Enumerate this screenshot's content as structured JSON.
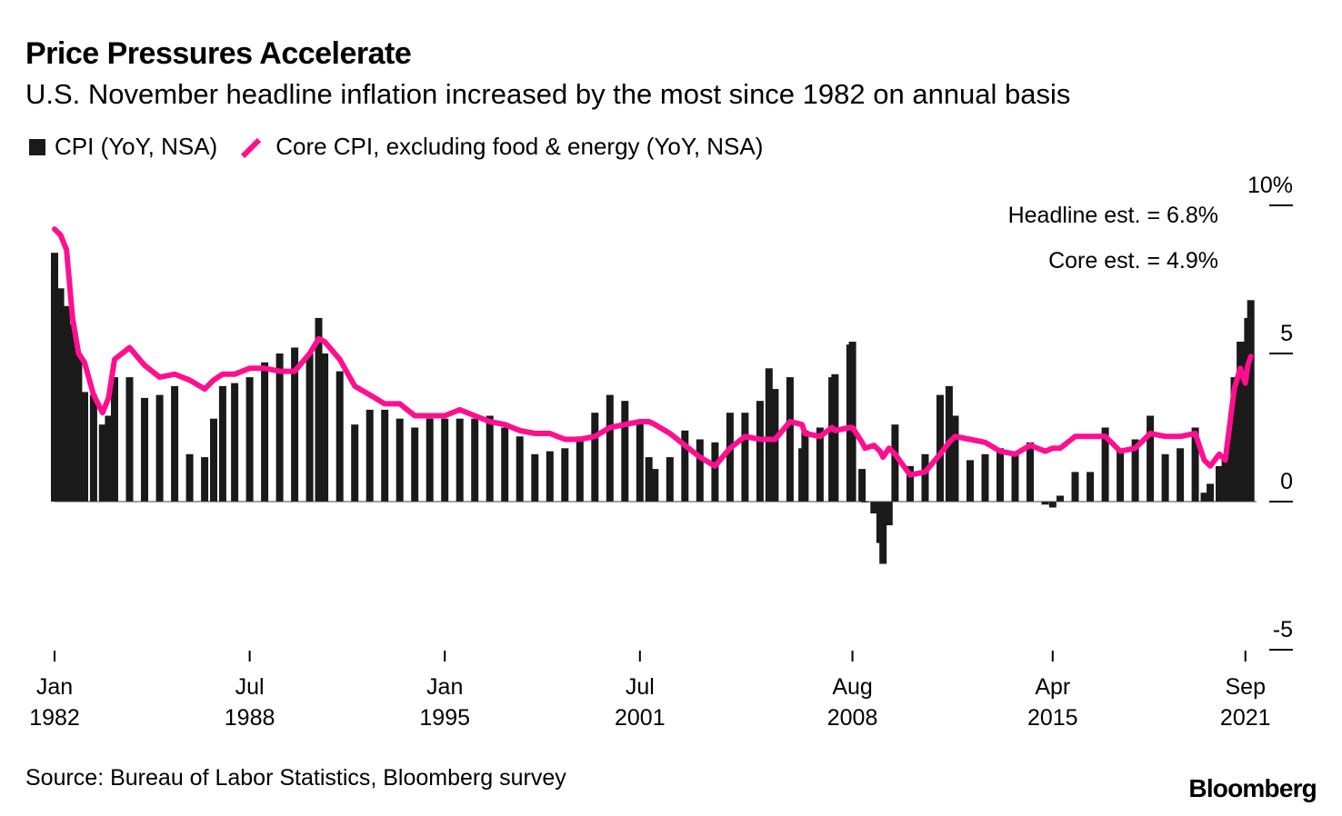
{
  "title": "Price Pressures Accelerate",
  "subtitle": "U.S. November headline inflation increased by the most since 1982 on annual basis",
  "legend": {
    "cpi": "CPI (YoY, NSA)",
    "core": "Core CPI, excluding food & energy (YoY, NSA)"
  },
  "source": "Source: Bureau of Labor Statistics, Bloomberg survey",
  "brand": "Bloomberg",
  "colors": {
    "bars": "#1a1a1a",
    "core": "#ff0f8f",
    "axis": "#000000"
  },
  "chart_data": {
    "type": "bar+line",
    "title": "Price Pressures Accelerate",
    "ylim": [
      -5,
      10
    ],
    "y_ticks": [
      {
        "value": 10,
        "label": "10%"
      },
      {
        "value": 5,
        "label": "5"
      },
      {
        "value": 0,
        "label": "0"
      },
      {
        "value": -5,
        "label": "-5"
      }
    ],
    "x_range": [
      1982.0,
      2021.92
    ],
    "x_ticks": [
      {
        "value": 1982.0,
        "month": "Jan",
        "year": "1982"
      },
      {
        "value": 1988.5,
        "month": "Jul",
        "year": "1988"
      },
      {
        "value": 1995.0,
        "month": "Jan",
        "year": "1995"
      },
      {
        "value": 2001.5,
        "month": "Jul",
        "year": "2001"
      },
      {
        "value": 2008.58,
        "month": "Aug",
        "year": "2008"
      },
      {
        "value": 2015.25,
        "month": "Apr",
        "year": "2015"
      },
      {
        "value": 2021.67,
        "month": "Sep",
        "year": "2021"
      }
    ],
    "annotations": [
      {
        "text": "Headline est. = 6.8%"
      },
      {
        "text": "Core est. = 4.9%"
      }
    ],
    "series": [
      {
        "name": "CPI (YoY, NSA)",
        "kind": "bar",
        "points": [
          [
            1982.0,
            8.4
          ],
          [
            1982.2,
            7.2
          ],
          [
            1982.4,
            6.6
          ],
          [
            1982.6,
            6.0
          ],
          [
            1982.8,
            5.0
          ],
          [
            1983.0,
            3.7
          ],
          [
            1983.3,
            3.6
          ],
          [
            1983.6,
            2.6
          ],
          [
            1983.8,
            2.9
          ],
          [
            1984.0,
            4.2
          ],
          [
            1984.5,
            4.2
          ],
          [
            1985.0,
            3.5
          ],
          [
            1985.5,
            3.6
          ],
          [
            1986.0,
            3.9
          ],
          [
            1986.5,
            1.6
          ],
          [
            1987.0,
            1.5
          ],
          [
            1987.3,
            2.8
          ],
          [
            1987.6,
            3.9
          ],
          [
            1988.0,
            4.0
          ],
          [
            1988.5,
            4.2
          ],
          [
            1989.0,
            4.7
          ],
          [
            1989.5,
            5.0
          ],
          [
            1990.0,
            5.2
          ],
          [
            1990.5,
            5.0
          ],
          [
            1990.8,
            6.2
          ],
          [
            1991.0,
            5.0
          ],
          [
            1991.5,
            4.4
          ],
          [
            1992.0,
            2.6
          ],
          [
            1992.5,
            3.1
          ],
          [
            1993.0,
            3.1
          ],
          [
            1993.5,
            2.8
          ],
          [
            1994.0,
            2.5
          ],
          [
            1994.5,
            2.8
          ],
          [
            1995.0,
            2.8
          ],
          [
            1995.5,
            2.8
          ],
          [
            1996.0,
            2.8
          ],
          [
            1996.5,
            2.9
          ],
          [
            1997.0,
            2.5
          ],
          [
            1997.5,
            2.2
          ],
          [
            1998.0,
            1.6
          ],
          [
            1998.5,
            1.7
          ],
          [
            1999.0,
            1.8
          ],
          [
            1999.5,
            2.2
          ],
          [
            2000.0,
            3.0
          ],
          [
            2000.5,
            3.6
          ],
          [
            2001.0,
            3.4
          ],
          [
            2001.5,
            2.7
          ],
          [
            2001.8,
            1.5
          ],
          [
            2002.0,
            1.1
          ],
          [
            2002.5,
            1.5
          ],
          [
            2003.0,
            2.4
          ],
          [
            2003.5,
            2.1
          ],
          [
            2004.0,
            2.0
          ],
          [
            2004.5,
            3.0
          ],
          [
            2005.0,
            3.0
          ],
          [
            2005.5,
            3.4
          ],
          [
            2005.8,
            4.5
          ],
          [
            2006.0,
            3.8
          ],
          [
            2006.5,
            4.2
          ],
          [
            2006.9,
            1.8
          ],
          [
            2007.0,
            2.4
          ],
          [
            2007.5,
            2.5
          ],
          [
            2007.9,
            4.2
          ],
          [
            2008.0,
            4.3
          ],
          [
            2008.5,
            5.3
          ],
          [
            2008.58,
            5.4
          ],
          [
            2008.9,
            1.1
          ],
          [
            2009.0,
            0.0
          ],
          [
            2009.3,
            -0.4
          ],
          [
            2009.5,
            -1.4
          ],
          [
            2009.6,
            -2.1
          ],
          [
            2009.8,
            -0.8
          ],
          [
            2010.0,
            2.6
          ],
          [
            2010.5,
            1.2
          ],
          [
            2011.0,
            1.6
          ],
          [
            2011.5,
            3.6
          ],
          [
            2011.8,
            3.9
          ],
          [
            2012.0,
            2.9
          ],
          [
            2012.5,
            1.4
          ],
          [
            2013.0,
            1.6
          ],
          [
            2013.5,
            1.8
          ],
          [
            2014.0,
            1.6
          ],
          [
            2014.5,
            2.0
          ],
          [
            2015.0,
            -0.1
          ],
          [
            2015.25,
            -0.2
          ],
          [
            2015.5,
            0.2
          ],
          [
            2016.0,
            1.0
          ],
          [
            2016.5,
            1.0
          ],
          [
            2017.0,
            2.5
          ],
          [
            2017.5,
            1.7
          ],
          [
            2018.0,
            2.1
          ],
          [
            2018.5,
            2.9
          ],
          [
            2019.0,
            1.6
          ],
          [
            2019.5,
            1.8
          ],
          [
            2020.0,
            2.5
          ],
          [
            2020.3,
            0.3
          ],
          [
            2020.5,
            0.6
          ],
          [
            2020.8,
            1.2
          ],
          [
            2021.0,
            1.4
          ],
          [
            2021.2,
            2.6
          ],
          [
            2021.3,
            4.2
          ],
          [
            2021.5,
            5.4
          ],
          [
            2021.67,
            5.4
          ],
          [
            2021.75,
            6.2
          ],
          [
            2021.85,
            6.8
          ]
        ]
      },
      {
        "name": "Core CPI, excluding food & energy (YoY, NSA)",
        "kind": "line",
        "points": [
          [
            1982.0,
            9.2
          ],
          [
            1982.2,
            9.0
          ],
          [
            1982.4,
            8.5
          ],
          [
            1982.6,
            6.2
          ],
          [
            1982.8,
            5.0
          ],
          [
            1983.0,
            4.7
          ],
          [
            1983.3,
            3.6
          ],
          [
            1983.6,
            3.0
          ],
          [
            1983.8,
            3.5
          ],
          [
            1984.0,
            4.8
          ],
          [
            1984.5,
            5.2
          ],
          [
            1985.0,
            4.6
          ],
          [
            1985.5,
            4.2
          ],
          [
            1986.0,
            4.3
          ],
          [
            1986.5,
            4.1
          ],
          [
            1987.0,
            3.8
          ],
          [
            1987.3,
            4.1
          ],
          [
            1987.6,
            4.3
          ],
          [
            1988.0,
            4.3
          ],
          [
            1988.5,
            4.5
          ],
          [
            1989.0,
            4.5
          ],
          [
            1989.5,
            4.4
          ],
          [
            1990.0,
            4.4
          ],
          [
            1990.5,
            5.0
          ],
          [
            1990.8,
            5.5
          ],
          [
            1991.0,
            5.4
          ],
          [
            1991.5,
            4.8
          ],
          [
            1992.0,
            3.9
          ],
          [
            1992.5,
            3.6
          ],
          [
            1993.0,
            3.3
          ],
          [
            1993.5,
            3.3
          ],
          [
            1994.0,
            2.9
          ],
          [
            1994.5,
            2.9
          ],
          [
            1995.0,
            2.9
          ],
          [
            1995.5,
            3.1
          ],
          [
            1996.0,
            2.9
          ],
          [
            1996.5,
            2.7
          ],
          [
            1997.0,
            2.6
          ],
          [
            1997.5,
            2.4
          ],
          [
            1998.0,
            2.3
          ],
          [
            1998.5,
            2.3
          ],
          [
            1999.0,
            2.1
          ],
          [
            1999.5,
            2.1
          ],
          [
            2000.0,
            2.2
          ],
          [
            2000.5,
            2.5
          ],
          [
            2001.0,
            2.6
          ],
          [
            2001.5,
            2.7
          ],
          [
            2001.8,
            2.7
          ],
          [
            2002.0,
            2.6
          ],
          [
            2002.5,
            2.3
          ],
          [
            2003.0,
            1.9
          ],
          [
            2003.5,
            1.5
          ],
          [
            2004.0,
            1.2
          ],
          [
            2004.5,
            1.8
          ],
          [
            2005.0,
            2.2
          ],
          [
            2005.5,
            2.1
          ],
          [
            2005.8,
            2.1
          ],
          [
            2006.0,
            2.1
          ],
          [
            2006.5,
            2.7
          ],
          [
            2006.9,
            2.6
          ],
          [
            2007.0,
            2.3
          ],
          [
            2007.5,
            2.2
          ],
          [
            2007.9,
            2.5
          ],
          [
            2008.0,
            2.4
          ],
          [
            2008.5,
            2.5
          ],
          [
            2008.58,
            2.5
          ],
          [
            2008.9,
            2.0
          ],
          [
            2009.0,
            1.8
          ],
          [
            2009.3,
            1.9
          ],
          [
            2009.5,
            1.7
          ],
          [
            2009.6,
            1.5
          ],
          [
            2009.8,
            1.8
          ],
          [
            2010.0,
            1.6
          ],
          [
            2010.5,
            0.9
          ],
          [
            2011.0,
            1.0
          ],
          [
            2011.5,
            1.6
          ],
          [
            2011.8,
            2.0
          ],
          [
            2012.0,
            2.2
          ],
          [
            2012.5,
            2.1
          ],
          [
            2013.0,
            2.0
          ],
          [
            2013.5,
            1.7
          ],
          [
            2014.0,
            1.6
          ],
          [
            2014.5,
            1.9
          ],
          [
            2015.0,
            1.7
          ],
          [
            2015.25,
            1.8
          ],
          [
            2015.5,
            1.8
          ],
          [
            2016.0,
            2.2
          ],
          [
            2016.5,
            2.2
          ],
          [
            2017.0,
            2.2
          ],
          [
            2017.5,
            1.7
          ],
          [
            2018.0,
            1.8
          ],
          [
            2018.5,
            2.3
          ],
          [
            2019.0,
            2.2
          ],
          [
            2019.5,
            2.2
          ],
          [
            2020.0,
            2.3
          ],
          [
            2020.3,
            1.4
          ],
          [
            2020.5,
            1.2
          ],
          [
            2020.8,
            1.6
          ],
          [
            2021.0,
            1.4
          ],
          [
            2021.2,
            3.0
          ],
          [
            2021.3,
            3.8
          ],
          [
            2021.5,
            4.5
          ],
          [
            2021.67,
            4.0
          ],
          [
            2021.75,
            4.6
          ],
          [
            2021.85,
            4.9
          ]
        ]
      }
    ]
  }
}
